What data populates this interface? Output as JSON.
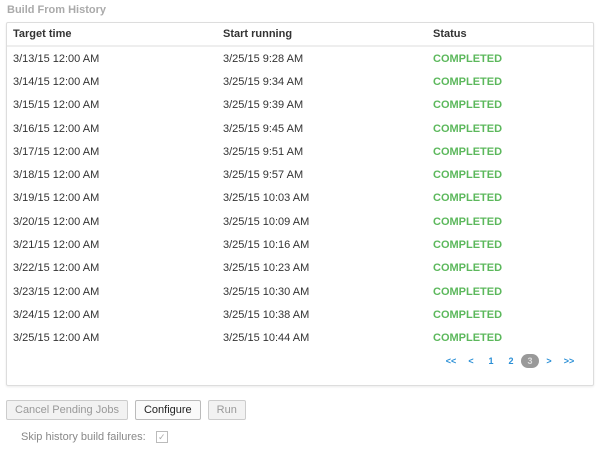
{
  "title": "Build From History",
  "columns": [
    "Target time",
    "Start running",
    "Status"
  ],
  "rows": [
    [
      "3/13/15 12:00 AM",
      "3/25/15 9:28 AM",
      "COMPLETED"
    ],
    [
      "3/14/15 12:00 AM",
      "3/25/15 9:34 AM",
      "COMPLETED"
    ],
    [
      "3/15/15 12:00 AM",
      "3/25/15 9:39 AM",
      "COMPLETED"
    ],
    [
      "3/16/15 12:00 AM",
      "3/25/15 9:45 AM",
      "COMPLETED"
    ],
    [
      "3/17/15 12:00 AM",
      "3/25/15 9:51 AM",
      "COMPLETED"
    ],
    [
      "3/18/15 12:00 AM",
      "3/25/15 9:57 AM",
      "COMPLETED"
    ],
    [
      "3/19/15 12:00 AM",
      "3/25/15 10:03 AM",
      "COMPLETED"
    ],
    [
      "3/20/15 12:00 AM",
      "3/25/15 10:09 AM",
      "COMPLETED"
    ],
    [
      "3/21/15 12:00 AM",
      "3/25/15 10:16 AM",
      "COMPLETED"
    ],
    [
      "3/22/15 12:00 AM",
      "3/25/15 10:23 AM",
      "COMPLETED"
    ],
    [
      "3/23/15 12:00 AM",
      "3/25/15 10:30 AM",
      "COMPLETED"
    ],
    [
      "3/24/15 12:00 AM",
      "3/25/15 10:38 AM",
      "COMPLETED"
    ],
    [
      "3/25/15 12:00 AM",
      "3/25/15 10:44 AM",
      "COMPLETED"
    ]
  ],
  "pagination": {
    "items": [
      "<<",
      "<",
      "1",
      "2",
      "3",
      ">",
      ">>"
    ],
    "current": "3"
  },
  "buttons": {
    "cancel": "Cancel Pending Jobs",
    "configure": "Configure",
    "run": "Run"
  },
  "skip": {
    "label": "Skip history build failures:",
    "checked": true,
    "check_glyph": "✓"
  },
  "colors": {
    "completed": "#5cb85c",
    "link": "#2a8fd6"
  }
}
